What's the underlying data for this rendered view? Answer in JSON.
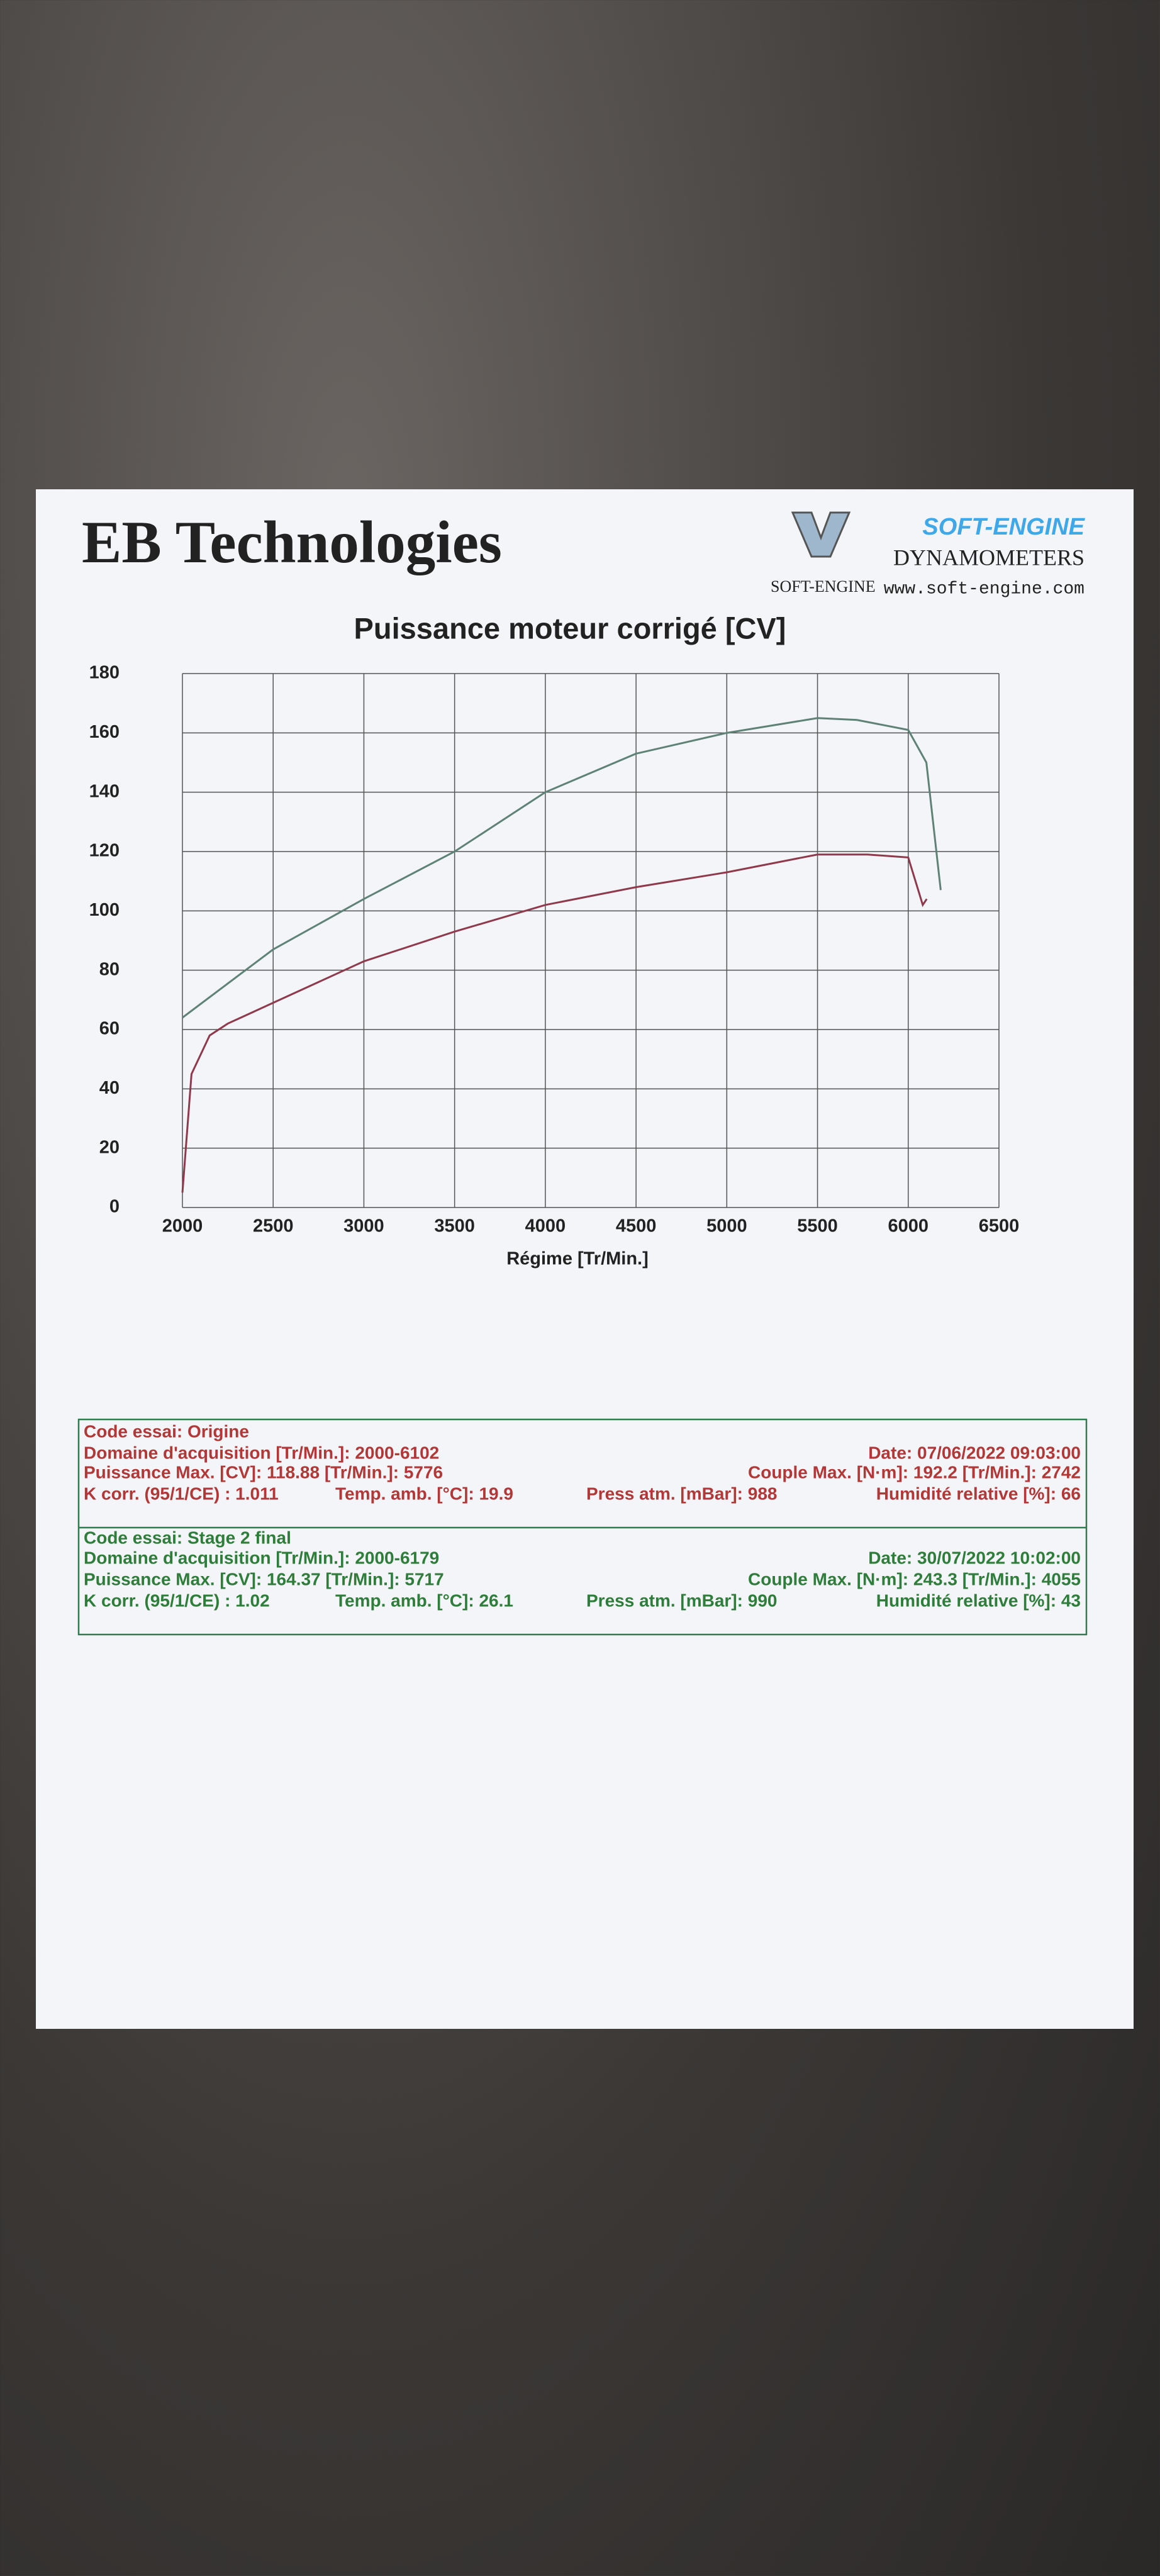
{
  "header": {
    "company": "EB Technologies",
    "logo_brand": "SOFT-ENGINE",
    "logo_mark": "SOFT-ENGINE",
    "logo_sub": "DYNAMOMETERS",
    "logo_url": "www.soft-engine.com"
  },
  "chart_data": {
    "type": "line",
    "title": "Puissance moteur corrigé [CV]",
    "x_label": "Régime [Tr/Min.]",
    "xlim": [
      2000,
      6500
    ],
    "xticks": [
      2000,
      2500,
      3000,
      3500,
      4000,
      4500,
      5000,
      5500,
      6000,
      6500
    ],
    "ylim": [
      0,
      180
    ],
    "yticks": [
      0,
      20,
      40,
      60,
      80,
      100,
      120,
      140,
      160,
      180
    ],
    "grid": true,
    "series": [
      {
        "color": "#8e3a4c",
        "x": [
          2000,
          2050,
          2150,
          2250,
          2500,
          3000,
          3500,
          4000,
          4500,
          5000,
          5500,
          5776,
          6000,
          6050,
          6080,
          6102
        ],
        "values": [
          5,
          45,
          58,
          62,
          69,
          83,
          93,
          102,
          108,
          113,
          119,
          119,
          118,
          108,
          102,
          104
        ]
      },
      {
        "color": "#5e8276",
        "x": [
          2000,
          2500,
          3000,
          3500,
          4000,
          4500,
          5000,
          5500,
          5717,
          6000,
          6100,
          6179
        ],
        "values": [
          64,
          87,
          104,
          120,
          140,
          153,
          160,
          165,
          164.37,
          161,
          150,
          107
        ]
      }
    ]
  },
  "tests": [
    {
      "code": "Code essai: Origine",
      "domain": "Domaine d'acquisition [Tr/Min.]: 2000-6102",
      "date": "Date: 07/06/2022   09:03:00",
      "power": "Puissance Max. [CV]: 118.88   [Tr/Min.]: 5776",
      "torque": "Couple Max. [N·m]: 192.2   [Tr/Min.]: 2742",
      "kcorr": "K corr. (95/1/CE) : 1.011",
      "temp": "Temp. amb. [°C]: 19.9",
      "press": "Press atm. [mBar]: 988",
      "humidity": "Humidité relative [%]: 66"
    },
    {
      "code": "Code essai: Stage 2 final",
      "domain": "Domaine d'acquisition [Tr/Min.]: 2000-6179",
      "date": "Date: 30/07/2022   10:02:00",
      "power": "Puissance Max. [CV]: 164.37   [Tr/Min.]: 5717",
      "torque": "Couple Max. [N·m]: 243.3   [Tr/Min.]: 4055",
      "kcorr": "K corr. (95/1/CE) : 1.02",
      "temp": "Temp. amb. [°C]: 26.1",
      "press": "Press atm. [mBar]: 990",
      "humidity": "Humidité relative [%]: 43"
    }
  ]
}
